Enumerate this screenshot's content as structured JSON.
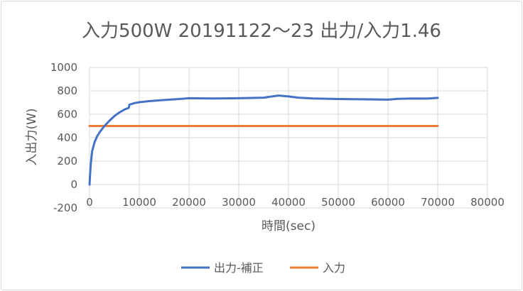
{
  "chart_data": {
    "type": "line",
    "title": "入力500W 20191122～23 出力/入力1.46",
    "xlabel": "時間(sec)",
    "ylabel": "入出力(W)",
    "xlim": [
      0,
      80000
    ],
    "ylim": [
      -200,
      1000
    ],
    "xticks": [
      0,
      10000,
      20000,
      30000,
      40000,
      50000,
      60000,
      70000,
      80000
    ],
    "yticks": [
      -200,
      0,
      200,
      400,
      600,
      800,
      1000
    ],
    "grid": true,
    "legend_position": "bottom",
    "series": [
      {
        "name": "出力-補正",
        "color": "#4472C4",
        "points": [
          [
            0,
            0
          ],
          [
            200,
            150
          ],
          [
            500,
            280
          ],
          [
            1000,
            360
          ],
          [
            1500,
            410
          ],
          [
            2000,
            445
          ],
          [
            3000,
            500
          ],
          [
            4000,
            545
          ],
          [
            5000,
            585
          ],
          [
            6000,
            615
          ],
          [
            7000,
            640
          ],
          [
            7900,
            655
          ],
          [
            8000,
            682
          ],
          [
            9000,
            695
          ],
          [
            10000,
            703
          ],
          [
            12000,
            712
          ],
          [
            15000,
            722
          ],
          [
            18000,
            730
          ],
          [
            20000,
            737
          ],
          [
            25000,
            735
          ],
          [
            30000,
            737
          ],
          [
            35000,
            742
          ],
          [
            38000,
            760
          ],
          [
            40000,
            752
          ],
          [
            42000,
            742
          ],
          [
            45000,
            735
          ],
          [
            50000,
            730
          ],
          [
            55000,
            728
          ],
          [
            60000,
            725
          ],
          [
            62000,
            732
          ],
          [
            65000,
            735
          ],
          [
            68000,
            734
          ],
          [
            70000,
            740
          ]
        ]
      },
      {
        "name": "入力",
        "color": "#ED7D31",
        "points": [
          [
            0,
            500
          ],
          [
            70000,
            500
          ]
        ]
      }
    ]
  }
}
